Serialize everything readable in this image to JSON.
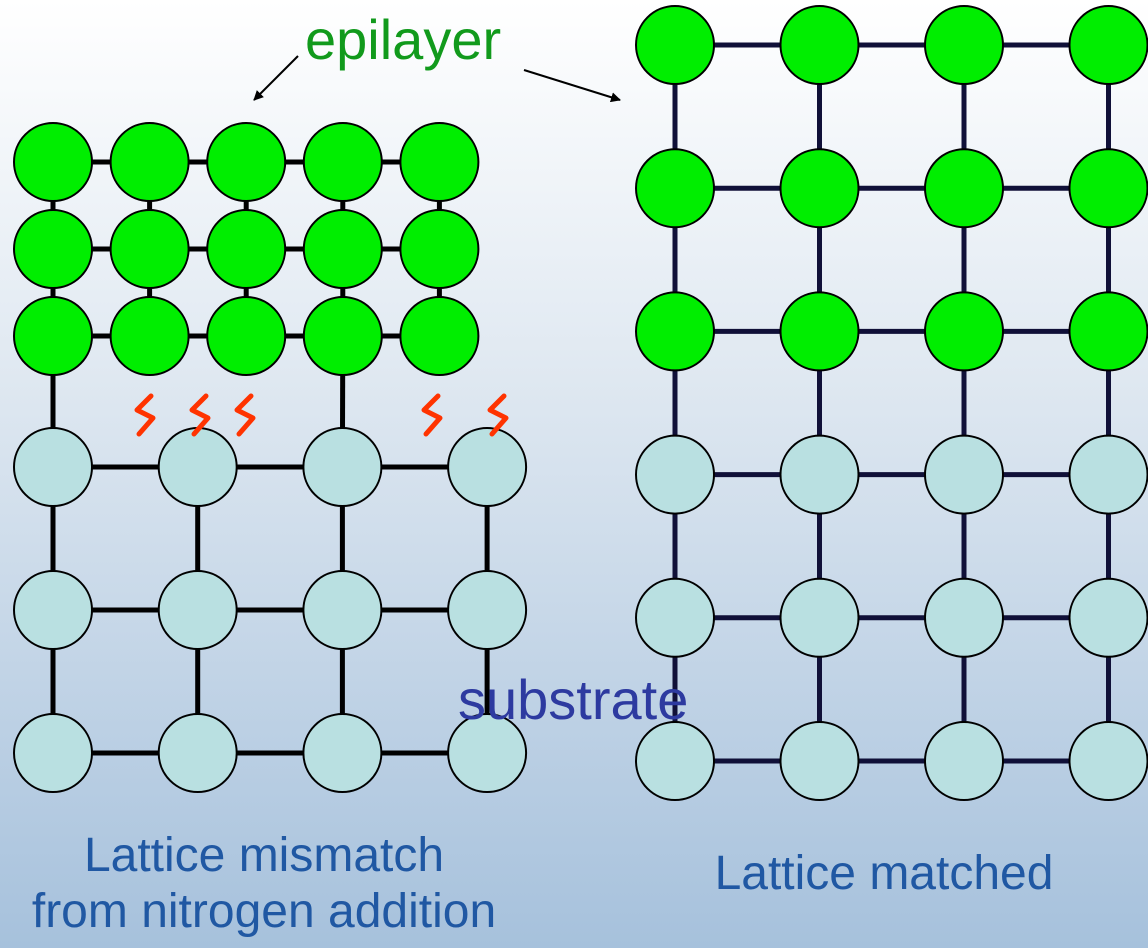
{
  "labels": {
    "epilayer": "epilayer",
    "substrate": "substrate",
    "left_caption_line1": "Lattice mismatch",
    "left_caption_line2": "from nitrogen addition",
    "right_caption": "Lattice matched"
  },
  "colors": {
    "epilayer_atom": "#00ee00",
    "substrate_atom": "#b9e0e1",
    "bond_left": "#000000",
    "bond_right": "#101038",
    "atom_outline": "#000000",
    "defect_mark": "#ff3300",
    "epilayer_text": "#119a1c",
    "substrate_text": "#2d3aa0",
    "caption_text": "#2058a3"
  },
  "left_lattice": {
    "epilayer": {
      "rows": 3,
      "cols": 5
    },
    "substrate": {
      "rows": 3,
      "cols": 4
    },
    "strain_marks": 5
  },
  "right_lattice": {
    "epilayer": {
      "rows": 3,
      "cols": 4
    },
    "substrate": {
      "rows": 3,
      "cols": 4
    }
  }
}
